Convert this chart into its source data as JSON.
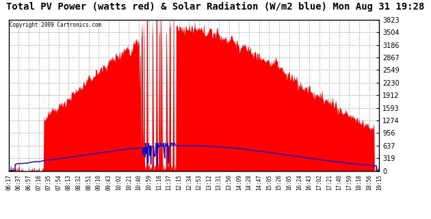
{
  "title": "Total PV Power (watts red) & Solar Radiation (W/m2 blue) Mon Aug 31 19:28",
  "copyright": "Copyright 2009 Cartronics.com",
  "y_max": 3823.1,
  "y_ticks": [
    0.0,
    318.6,
    637.2,
    955.8,
    1274.4,
    1593.0,
    1911.6,
    2230.2,
    2548.8,
    2867.3,
    3185.9,
    3504.5,
    3823.1
  ],
  "x_labels": [
    "06:17",
    "06:37",
    "06:57",
    "07:16",
    "07:35",
    "07:54",
    "08:13",
    "08:32",
    "08:51",
    "09:10",
    "09:43",
    "10:02",
    "10:21",
    "10:40",
    "10:59",
    "11:18",
    "11:37",
    "12:15",
    "12:34",
    "12:53",
    "13:12",
    "13:31",
    "13:50",
    "14:09",
    "14:28",
    "14:47",
    "15:05",
    "15:26",
    "16:05",
    "16:24",
    "16:43",
    "17:02",
    "17:21",
    "17:40",
    "17:59",
    "18:18",
    "18:56",
    "19:15"
  ],
  "background_color": "#ffffff",
  "plot_bg_color": "#ffffff",
  "grid_color": "#aaaaaa",
  "red_color": "#ff0000",
  "blue_color": "#0000cc",
  "title_fontsize": 10,
  "title_font": "monospace"
}
